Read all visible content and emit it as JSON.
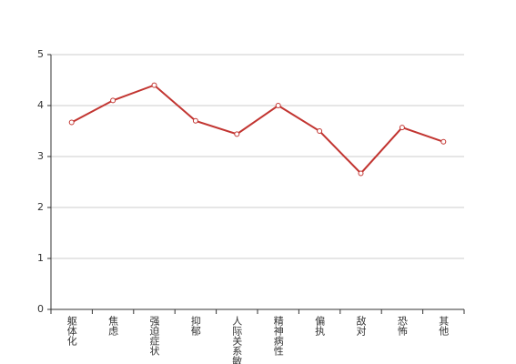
{
  "chart_data": {
    "type": "line",
    "categories": [
      "躯体化",
      "焦虑",
      "强迫症状",
      "抑郁",
      "人际关系敏感",
      "精神病性",
      "偏执",
      "敌对",
      "恐怖",
      "其他"
    ],
    "values": [
      3.67,
      4.1,
      4.4,
      3.7,
      3.44,
      4.0,
      3.5,
      2.67,
      3.57,
      3.29
    ],
    "color": "#c23531",
    "ylim": [
      0,
      5
    ],
    "yticks": [
      0,
      1,
      2,
      3,
      4,
      5
    ],
    "grid": true
  }
}
